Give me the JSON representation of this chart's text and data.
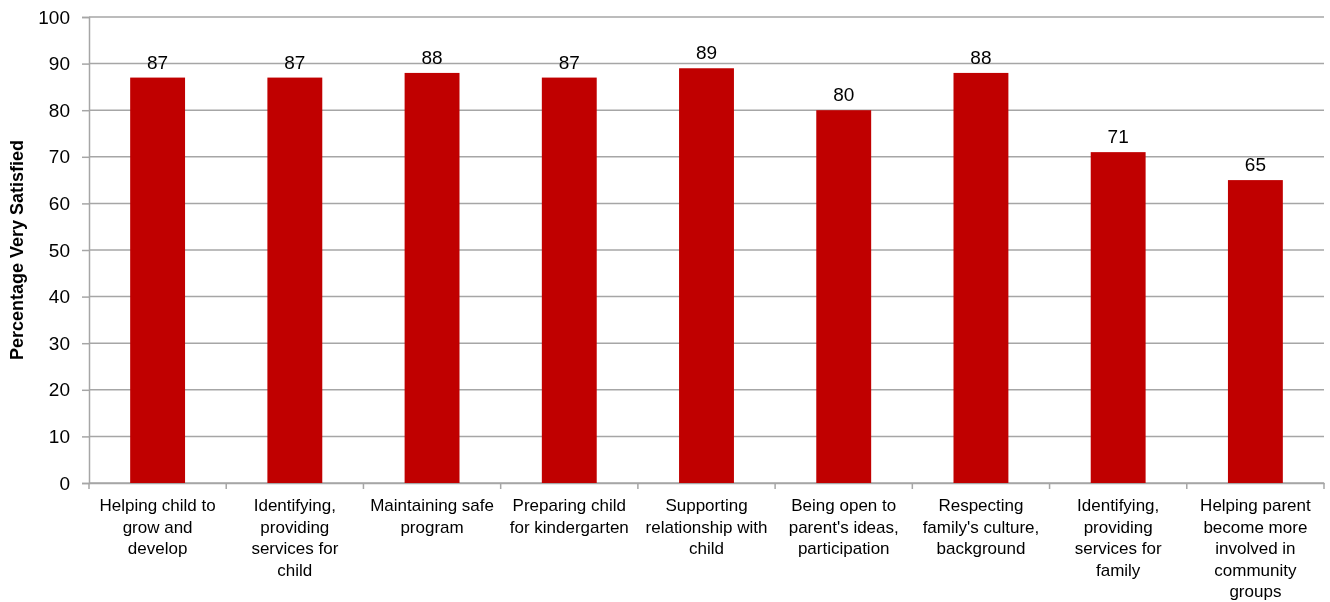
{
  "chart_data": {
    "type": "bar",
    "ylabel": "Percentage Very Satisfied",
    "categories": [
      "Helping child to grow and develop",
      "Identifying, providing services for child",
      "Maintaining safe program",
      "Preparing child for kindergarten",
      "Supporting relationship with child",
      "Being open to parent's ideas, participation",
      "Respecting family's culture, background",
      "Identifying, providing services for family",
      "Helping parent become more involved in community groups"
    ],
    "values": [
      87,
      87,
      88,
      87,
      89,
      80,
      88,
      71,
      65
    ],
    "color": "#c00000",
    "ylim": [
      0,
      100
    ],
    "yticks": [
      0,
      10,
      20,
      30,
      40,
      50,
      60,
      70,
      80,
      90,
      100
    ],
    "grid": "y",
    "data_labels": true
  }
}
